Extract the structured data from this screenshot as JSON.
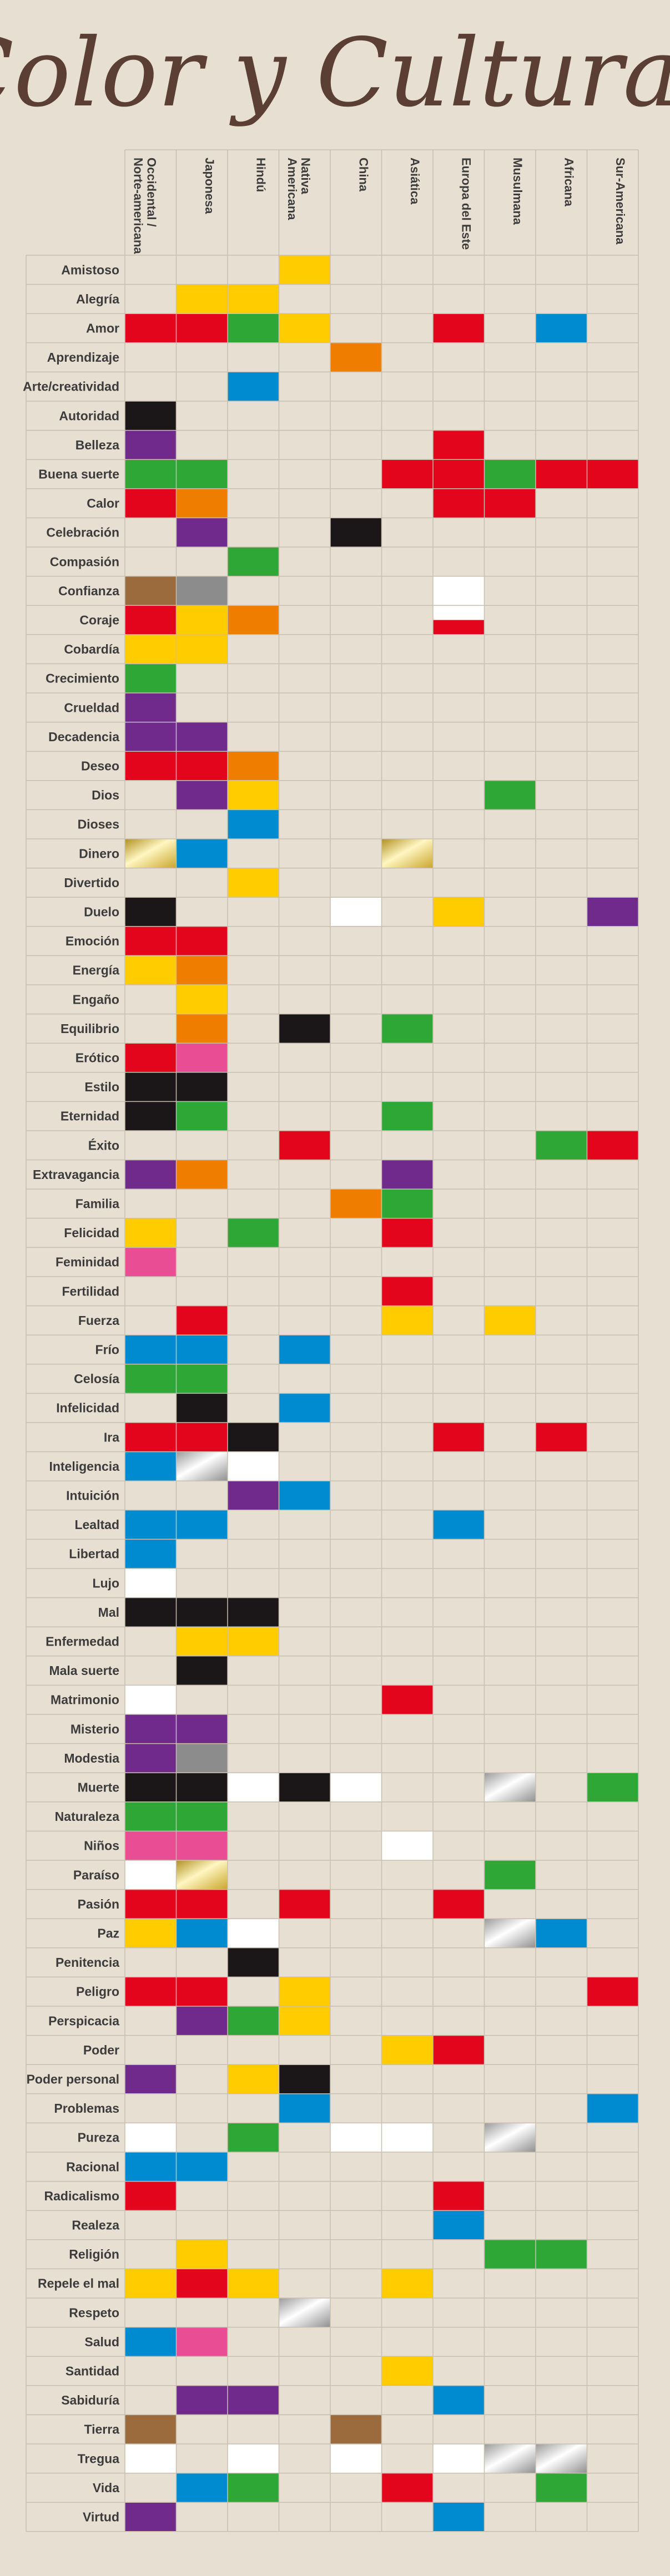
{
  "title": "Color y Culturas",
  "colors": {
    "red": "#e3051b",
    "yellow": "#ffcc00",
    "green": "#2ea737",
    "blue": "#008acf",
    "orange": "#ef7d00",
    "purple": "#6f2a8c",
    "black": "#1b1718",
    "white": "#ffffff",
    "brown": "#9b6a3d",
    "gray": "#8c8c8c",
    "pink": "#e94e95",
    "gold": "gold-gradient",
    "silver": "silver-gradient"
  },
  "chart_data": {
    "type": "table",
    "title": "Color y Culturas",
    "columns": [
      "Occidental / Norte-americana",
      "Japonesa",
      "Hindú",
      "Nativa Americana",
      "China",
      "Asiática",
      "Europa del Este",
      "Musulmana",
      "Africana",
      "Sur-Americana"
    ],
    "rows": [
      {
        "label": "Amistoso",
        "cells": [
          null,
          null,
          null,
          "yellow",
          null,
          null,
          null,
          null,
          null,
          null
        ]
      },
      {
        "label": "Alegría",
        "cells": [
          null,
          "yellow",
          "yellow",
          null,
          null,
          null,
          null,
          null,
          null,
          null
        ]
      },
      {
        "label": "Amor",
        "cells": [
          "red",
          "red",
          "green",
          "yellow",
          null,
          null,
          "red",
          null,
          "blue",
          null
        ]
      },
      {
        "label": "Aprendizaje",
        "cells": [
          null,
          null,
          null,
          null,
          "orange",
          null,
          null,
          null,
          null,
          null
        ]
      },
      {
        "label": "Arte/creatividad",
        "cells": [
          null,
          null,
          "blue",
          null,
          null,
          null,
          null,
          null,
          null,
          null
        ]
      },
      {
        "label": "Autoridad",
        "cells": [
          "black",
          null,
          null,
          null,
          null,
          null,
          null,
          null,
          null,
          null
        ]
      },
      {
        "label": "Belleza",
        "cells": [
          "purple",
          null,
          null,
          null,
          null,
          null,
          "red",
          null,
          null,
          null
        ]
      },
      {
        "label": "Buena suerte",
        "cells": [
          "green",
          "green",
          null,
          null,
          null,
          "red",
          "red",
          "green",
          "red",
          "red"
        ]
      },
      {
        "label": "Calor",
        "cells": [
          "red",
          "orange",
          null,
          null,
          null,
          null,
          "red",
          "red",
          null,
          null
        ]
      },
      {
        "label": "Celebración",
        "cells": [
          null,
          "purple",
          null,
          null,
          "black",
          null,
          null,
          null,
          null,
          null
        ]
      },
      {
        "label": "Compasión",
        "cells": [
          null,
          null,
          "green",
          null,
          null,
          null,
          null,
          null,
          null,
          null
        ]
      },
      {
        "label": "Confianza",
        "cells": [
          "brown",
          "gray",
          null,
          null,
          null,
          null,
          "white",
          null,
          null,
          null
        ]
      },
      {
        "label": "Coraje",
        "cells": [
          "red",
          "yellow",
          "orange",
          null,
          null,
          null,
          "red-white",
          null,
          null,
          null
        ]
      },
      {
        "label": "Cobardía",
        "cells": [
          "yellow",
          "yellow",
          null,
          null,
          null,
          null,
          null,
          null,
          null,
          null
        ]
      },
      {
        "label": "Crecimiento",
        "cells": [
          "green",
          null,
          null,
          null,
          null,
          null,
          null,
          null,
          null,
          null
        ]
      },
      {
        "label": "Crueldad",
        "cells": [
          "purple",
          null,
          null,
          null,
          null,
          null,
          null,
          null,
          null,
          null
        ]
      },
      {
        "label": "Decadencia",
        "cells": [
          "purple",
          "purple",
          null,
          null,
          null,
          null,
          null,
          null,
          null,
          null
        ]
      },
      {
        "label": "Deseo",
        "cells": [
          "red",
          "red",
          "orange",
          null,
          null,
          null,
          null,
          null,
          null,
          null
        ]
      },
      {
        "label": "Dios",
        "cells": [
          null,
          "purple",
          "yellow",
          null,
          null,
          null,
          null,
          "green",
          null,
          null
        ]
      },
      {
        "label": "Dioses",
        "cells": [
          null,
          null,
          "blue",
          null,
          null,
          null,
          null,
          null,
          null,
          null
        ]
      },
      {
        "label": "Dinero",
        "cells": [
          "gold",
          "blue",
          null,
          null,
          null,
          "gold",
          null,
          null,
          null,
          null
        ]
      },
      {
        "label": "Divertido",
        "cells": [
          null,
          null,
          "yellow",
          null,
          null,
          null,
          null,
          null,
          null,
          null
        ]
      },
      {
        "label": "Duelo",
        "cells": [
          "black",
          null,
          null,
          null,
          "white",
          null,
          "yellow",
          null,
          null,
          "purple"
        ]
      },
      {
        "label": "Emoción",
        "cells": [
          "red",
          "red",
          null,
          null,
          null,
          null,
          null,
          null,
          null,
          null
        ]
      },
      {
        "label": "Energía",
        "cells": [
          "yellow",
          "orange",
          null,
          null,
          null,
          null,
          null,
          null,
          null,
          null
        ]
      },
      {
        "label": "Engaño",
        "cells": [
          null,
          "yellow",
          null,
          null,
          null,
          null,
          null,
          null,
          null,
          null
        ]
      },
      {
        "label": "Equilibrio",
        "cells": [
          null,
          "orange",
          null,
          "black",
          null,
          "green",
          null,
          null,
          null,
          null
        ]
      },
      {
        "label": "Erótico",
        "cells": [
          "red",
          "pink",
          null,
          null,
          null,
          null,
          null,
          null,
          null,
          null
        ]
      },
      {
        "label": "Estilo",
        "cells": [
          "black",
          "black",
          null,
          null,
          null,
          null,
          null,
          null,
          null,
          null
        ]
      },
      {
        "label": "Eternidad",
        "cells": [
          "black",
          "green",
          null,
          null,
          null,
          "green",
          null,
          null,
          null,
          null
        ]
      },
      {
        "label": "Éxito",
        "cells": [
          null,
          null,
          null,
          "red",
          null,
          null,
          null,
          null,
          "green",
          "red"
        ]
      },
      {
        "label": "Extravagancia",
        "cells": [
          "purple",
          "orange",
          null,
          null,
          null,
          "purple",
          null,
          null,
          null,
          null
        ]
      },
      {
        "label": "Familia",
        "cells": [
          null,
          null,
          null,
          null,
          "orange",
          "green",
          null,
          null,
          null,
          null
        ]
      },
      {
        "label": "Felicidad",
        "cells": [
          "yellow",
          null,
          "green",
          null,
          null,
          "red",
          null,
          null,
          null,
          null
        ]
      },
      {
        "label": "Feminidad",
        "cells": [
          "pink",
          null,
          null,
          null,
          null,
          null,
          null,
          null,
          null,
          null
        ]
      },
      {
        "label": "Fertilidad",
        "cells": [
          null,
          null,
          null,
          null,
          null,
          "red",
          null,
          null,
          null,
          null
        ]
      },
      {
        "label": "Fuerza",
        "cells": [
          null,
          "red",
          null,
          null,
          null,
          "yellow",
          null,
          "yellow",
          null,
          null
        ]
      },
      {
        "label": "Frío",
        "cells": [
          "blue",
          "blue",
          null,
          "blue",
          null,
          null,
          null,
          null,
          null,
          null
        ]
      },
      {
        "label": "Celosía",
        "cells": [
          "green",
          "green",
          null,
          null,
          null,
          null,
          null,
          null,
          null,
          null
        ]
      },
      {
        "label": "Infelicidad",
        "cells": [
          null,
          "black",
          null,
          "blue",
          null,
          null,
          null,
          null,
          null,
          null
        ]
      },
      {
        "label": "Ira",
        "cells": [
          "red",
          "red",
          "black",
          null,
          null,
          null,
          "red",
          null,
          "red",
          null
        ]
      },
      {
        "label": "Inteligencia",
        "cells": [
          "blue",
          "silver",
          "white",
          null,
          null,
          null,
          null,
          null,
          null,
          null
        ]
      },
      {
        "label": "Intuición",
        "cells": [
          null,
          null,
          "purple",
          "blue",
          null,
          null,
          null,
          null,
          null,
          null
        ]
      },
      {
        "label": "Lealtad",
        "cells": [
          "blue",
          "blue",
          null,
          null,
          null,
          null,
          "blue",
          null,
          null,
          null
        ]
      },
      {
        "label": "Libertad",
        "cells": [
          "blue",
          null,
          null,
          null,
          null,
          null,
          null,
          null,
          null,
          null
        ]
      },
      {
        "label": "Lujo",
        "cells": [
          "white",
          null,
          null,
          null,
          null,
          null,
          null,
          null,
          null,
          null
        ]
      },
      {
        "label": "Mal",
        "cells": [
          "black",
          "black",
          "black",
          null,
          null,
          null,
          null,
          null,
          null,
          null
        ]
      },
      {
        "label": "Enfermedad",
        "cells": [
          null,
          "yellow",
          "yellow",
          null,
          null,
          null,
          null,
          null,
          null,
          null
        ]
      },
      {
        "label": "Mala suerte",
        "cells": [
          null,
          "black",
          null,
          null,
          null,
          null,
          null,
          null,
          null,
          null
        ]
      },
      {
        "label": "Matrimonio",
        "cells": [
          "white",
          null,
          null,
          null,
          null,
          "red",
          null,
          null,
          null,
          null
        ]
      },
      {
        "label": "Misterio",
        "cells": [
          "purple",
          "purple",
          null,
          null,
          null,
          null,
          null,
          null,
          null,
          null
        ]
      },
      {
        "label": "Modestia",
        "cells": [
          "purple",
          "gray",
          null,
          null,
          null,
          null,
          null,
          null,
          null,
          null
        ]
      },
      {
        "label": "Muerte",
        "cells": [
          "black",
          "black",
          "white",
          "black",
          "white",
          null,
          null,
          "silver",
          null,
          "green"
        ]
      },
      {
        "label": "Naturaleza",
        "cells": [
          "green",
          "green",
          null,
          null,
          null,
          null,
          null,
          null,
          null,
          null
        ]
      },
      {
        "label": "Niños",
        "cells": [
          "pink",
          "pink",
          null,
          null,
          null,
          "white",
          null,
          null,
          null,
          null
        ]
      },
      {
        "label": "Paraíso",
        "cells": [
          "white",
          "gold",
          null,
          null,
          null,
          null,
          null,
          "green",
          null,
          null
        ]
      },
      {
        "label": "Pasión",
        "cells": [
          "red",
          "red",
          null,
          "red",
          null,
          null,
          "red",
          null,
          null,
          null
        ]
      },
      {
        "label": "Paz",
        "cells": [
          "yellow",
          "blue",
          "white",
          null,
          null,
          null,
          null,
          "silver",
          "blue",
          null
        ]
      },
      {
        "label": "Penitencia",
        "cells": [
          null,
          null,
          "black",
          null,
          null,
          null,
          null,
          null,
          null,
          null
        ]
      },
      {
        "label": "Peligro",
        "cells": [
          "red",
          "red",
          null,
          "yellow",
          null,
          null,
          null,
          null,
          null,
          "red"
        ]
      },
      {
        "label": "Perspicacia",
        "cells": [
          null,
          "purple",
          "green",
          "yellow",
          null,
          null,
          null,
          null,
          null,
          null
        ]
      },
      {
        "label": "Poder",
        "cells": [
          null,
          null,
          null,
          null,
          null,
          "yellow",
          "red",
          null,
          null,
          null
        ]
      },
      {
        "label": "Poder personal",
        "cells": [
          "purple",
          null,
          "yellow",
          "black",
          null,
          null,
          null,
          null,
          null,
          null
        ]
      },
      {
        "label": "Problemas",
        "cells": [
          null,
          null,
          null,
          "blue",
          null,
          null,
          null,
          null,
          null,
          "blue"
        ]
      },
      {
        "label": "Pureza",
        "cells": [
          "white",
          null,
          "green",
          null,
          "white",
          "white",
          null,
          "silver",
          null,
          null
        ]
      },
      {
        "label": "Racional",
        "cells": [
          "blue",
          "blue",
          null,
          null,
          null,
          null,
          null,
          null,
          null,
          null
        ]
      },
      {
        "label": "Radicalismo",
        "cells": [
          "red",
          null,
          null,
          null,
          null,
          null,
          "red",
          null,
          null,
          null
        ]
      },
      {
        "label": "Realeza",
        "cells": [
          null,
          null,
          null,
          null,
          null,
          null,
          "blue",
          null,
          null,
          null
        ]
      },
      {
        "label": "Religión",
        "cells": [
          null,
          "yellow",
          null,
          null,
          null,
          null,
          null,
          "green",
          "green",
          null
        ]
      },
      {
        "label": "Repele el mal",
        "cells": [
          "yellow",
          "red",
          "yellow",
          null,
          null,
          "yellow",
          null,
          null,
          null,
          null
        ]
      },
      {
        "label": "Respeto",
        "cells": [
          null,
          null,
          null,
          "silver",
          null,
          null,
          null,
          null,
          null,
          null
        ]
      },
      {
        "label": "Salud",
        "cells": [
          "blue",
          "pink",
          null,
          null,
          null,
          null,
          null,
          null,
          null,
          null
        ]
      },
      {
        "label": "Santidad",
        "cells": [
          null,
          null,
          null,
          null,
          null,
          "yellow",
          null,
          null,
          null,
          null
        ]
      },
      {
        "label": "Sabiduría",
        "cells": [
          null,
          "purple",
          "purple",
          null,
          null,
          null,
          "blue",
          null,
          null,
          null
        ]
      },
      {
        "label": "Tierra",
        "cells": [
          "brown",
          null,
          null,
          null,
          "brown",
          null,
          null,
          null,
          null,
          null
        ]
      },
      {
        "label": "Tregua",
        "cells": [
          "white",
          null,
          "white",
          null,
          "white",
          null,
          "white",
          "silver",
          "silver",
          null
        ]
      },
      {
        "label": "Vida",
        "cells": [
          null,
          "blue",
          "green",
          null,
          null,
          "red",
          null,
          null,
          "green",
          null
        ]
      },
      {
        "label": "Virtud",
        "cells": [
          "purple",
          null,
          null,
          null,
          null,
          null,
          "blue",
          null,
          null,
          null
        ]
      }
    ]
  }
}
